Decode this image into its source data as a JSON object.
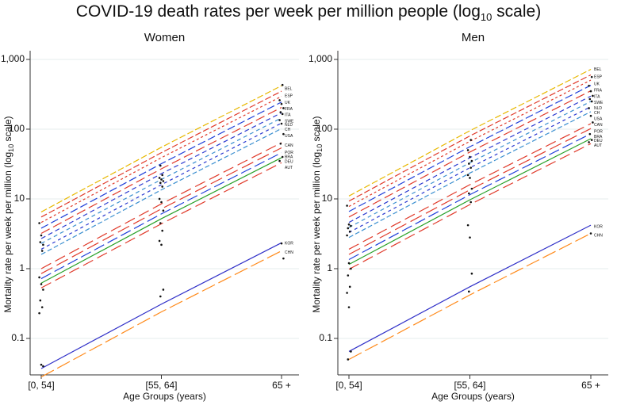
{
  "title": {
    "text": "COVID-19 death rates per week per million people (log",
    "sub": "10",
    "tail": " scale)"
  },
  "chart_data": [
    {
      "type": "line",
      "panel": "Women",
      "title": "Women",
      "xlabel": "Age Groups (years)",
      "ylabel_main": "Mortality rate per week per million (log",
      "ylabel_sub": "10",
      "ylabel_tail": " scale)",
      "yscale": "log",
      "ylim": [
        0.03,
        1200
      ],
      "categories": [
        "[0, 54]",
        "[55, 64]",
        "65 +"
      ],
      "y_ticks": [
        0.1,
        1,
        10,
        100,
        1000
      ],
      "y_tick_labels": [
        "0.1",
        "1",
        "10",
        "100",
        "1,000"
      ],
      "series": [
        {
          "name": "BEL",
          "color": "#e8b800",
          "dash": "8,3",
          "values": [
            6.5,
            55,
            420
          ],
          "label_value": 380
        },
        {
          "name": "ESP",
          "color": "#e03a2a",
          "dash": "8,3",
          "values": [
            5.5,
            46,
            350
          ],
          "label_value": 300
        },
        {
          "name": "UK",
          "color": "#e03a2a",
          "dash": "3,3",
          "values": [
            4.6,
            39,
            295
          ],
          "label_value": 240
        },
        {
          "name": "FRA",
          "color": "#1f3fd9",
          "dash": "10,4",
          "values": [
            3.8,
            32,
            245
          ],
          "label_value": 195
        },
        {
          "name": "ITA",
          "color": "#e03a2a",
          "dash": "12,5",
          "values": [
            3.2,
            27,
            205
          ],
          "label_value": 160
        },
        {
          "name": "SWE",
          "color": "#2a39d0",
          "dash": "6,4",
          "values": [
            2.7,
            23,
            172
          ],
          "label_value": 130
        },
        {
          "name": "NLD",
          "color": "#3b8fd0",
          "dash": "5,4",
          "values": [
            2.3,
            19,
            145
          ],
          "label_value": 115
        },
        {
          "name": "CH",
          "color": "#2a39d0",
          "dash": "4,4",
          "values": [
            1.9,
            16,
            122
          ],
          "label_value": 98
        },
        {
          "name": "USA",
          "color": "#3b8fd0",
          "dash": "6,3",
          "values": [
            1.6,
            13.5,
            102
          ],
          "label_value": 80
        },
        {
          "name": "CAN",
          "color": "#e03a2a",
          "dash": "14,6",
          "values": [
            1.0,
            8.5,
            64
          ],
          "label_value": 58
        },
        {
          "name": "POR",
          "color": "#e03a2a",
          "dash": "16,6",
          "values": [
            0.85,
            7.2,
            54
          ],
          "label_value": 46
        },
        {
          "name": "BRA",
          "color": "#1f3fd9",
          "dash": "14,5",
          "values": [
            0.72,
            6.1,
            46
          ],
          "label_value": 40
        },
        {
          "name": "DEU",
          "color": "#28a028",
          "dash": "",
          "values": [
            0.62,
            5.2,
            39
          ],
          "label_value": 34
        },
        {
          "name": "AUT",
          "color": "#e03a2a",
          "dash": "14,6",
          "values": [
            0.53,
            4.4,
            33
          ],
          "label_value": 28
        },
        {
          "name": "KOR",
          "color": "#3030c8",
          "dash": "",
          "values": [
            0.037,
            0.31,
            2.35
          ],
          "label_value": 2.3
        },
        {
          "name": "CHN",
          "color": "#ff8a1a",
          "dash": "18,5",
          "values": [
            0.028,
            0.24,
            1.8
          ],
          "label_value": 1.7
        }
      ],
      "points": [
        {
          "x": 0,
          "y": 4.5
        },
        {
          "x": 0,
          "y": 3.0
        },
        {
          "x": 0,
          "y": 2.2
        },
        {
          "x": 0,
          "y": 2.4
        },
        {
          "x": 0,
          "y": 1.8
        },
        {
          "x": 0,
          "y": 0.75
        },
        {
          "x": 0,
          "y": 0.6
        },
        {
          "x": 0,
          "y": 0.5
        },
        {
          "x": 0,
          "y": 0.35
        },
        {
          "x": 0,
          "y": 0.28
        },
        {
          "x": 0,
          "y": 0.23
        },
        {
          "x": 0,
          "y": 0.042
        },
        {
          "x": 0,
          "y": 0.04
        },
        {
          "x": 1,
          "y": 30
        },
        {
          "x": 1,
          "y": 22
        },
        {
          "x": 1,
          "y": 20
        },
        {
          "x": 1,
          "y": 19
        },
        {
          "x": 1,
          "y": 18
        },
        {
          "x": 1,
          "y": 17
        },
        {
          "x": 1,
          "y": 15
        },
        {
          "x": 1,
          "y": 10
        },
        {
          "x": 1,
          "y": 9
        },
        {
          "x": 1,
          "y": 6.8
        },
        {
          "x": 1,
          "y": 4.5
        },
        {
          "x": 1,
          "y": 3.5
        },
        {
          "x": 1,
          "y": 2.5
        },
        {
          "x": 1,
          "y": 2.2
        },
        {
          "x": 1,
          "y": 0.5
        },
        {
          "x": 1,
          "y": 0.4
        },
        {
          "x": 2,
          "y": 430
        },
        {
          "x": 2,
          "y": 260
        },
        {
          "x": 2,
          "y": 230
        },
        {
          "x": 2,
          "y": 200
        },
        {
          "x": 2,
          "y": 175
        },
        {
          "x": 2,
          "y": 165
        },
        {
          "x": 2,
          "y": 135
        },
        {
          "x": 2,
          "y": 120
        },
        {
          "x": 2,
          "y": 85
        },
        {
          "x": 2,
          "y": 62
        },
        {
          "x": 2,
          "y": 40
        },
        {
          "x": 2,
          "y": 35
        },
        {
          "x": 2,
          "y": 2.3
        },
        {
          "x": 2,
          "y": 1.4
        }
      ]
    },
    {
      "type": "line",
      "panel": "Men",
      "title": "Men",
      "xlabel": "Age Groups (years)",
      "ylabel_main": "Mortality rate per week per million (log",
      "ylabel_sub": "10",
      "ylabel_tail": " scale)",
      "yscale": "log",
      "ylim": [
        0.03,
        1200
      ],
      "categories": [
        "[0, 54]",
        "[55, 64]",
        "65 +"
      ],
      "y_ticks": [
        0.1,
        1,
        10,
        100,
        1000
      ],
      "y_tick_labels": [
        "0.1",
        "1",
        "10",
        "100",
        "1,000"
      ],
      "series": [
        {
          "name": "BEL",
          "color": "#e8b800",
          "dash": "8,3",
          "values": [
            11,
            95,
            720
          ],
          "label_value": 720
        },
        {
          "name": "ESP",
          "color": "#e03a2a",
          "dash": "8,3",
          "values": [
            9.3,
            80,
            600
          ],
          "label_value": 560
        },
        {
          "name": "UK",
          "color": "#e03a2a",
          "dash": "3,3",
          "values": [
            7.8,
            67,
            505
          ],
          "label_value": 440
        },
        {
          "name": "FRA",
          "color": "#1f3fd9",
          "dash": "10,4",
          "values": [
            6.6,
            56,
            425
          ],
          "label_value": 360
        },
        {
          "name": "ITA",
          "color": "#e03a2a",
          "dash": "12,5",
          "values": [
            5.5,
            47,
            355
          ],
          "label_value": 290
        },
        {
          "name": "SWE",
          "color": "#2a39d0",
          "dash": "6,4",
          "values": [
            4.6,
            39,
            298
          ],
          "label_value": 240
        },
        {
          "name": "NLD",
          "color": "#3b8fd0",
          "dash": "5,4",
          "values": [
            3.9,
            33,
            250
          ],
          "label_value": 200
        },
        {
          "name": "CH",
          "color": "#2a39d0",
          "dash": "4,4",
          "values": [
            3.3,
            28,
            210
          ],
          "label_value": 170
        },
        {
          "name": "USA",
          "color": "#3b8fd0",
          "dash": "6,3",
          "values": [
            2.8,
            23.5,
            178
          ],
          "label_value": 140
        },
        {
          "name": "CAN",
          "color": "#e03a2a",
          "dash": "14,6",
          "values": [
            1.9,
            16,
            120
          ],
          "label_value": 115
        },
        {
          "name": "POR",
          "color": "#e03a2a",
          "dash": "16,6",
          "values": [
            1.6,
            13.5,
            102
          ],
          "label_value": 92
        },
        {
          "name": "BRA",
          "color": "#1f3fd9",
          "dash": "14,5",
          "values": [
            1.35,
            11.5,
            86
          ],
          "label_value": 78
        },
        {
          "name": "DEU",
          "color": "#28a028",
          "dash": "",
          "values": [
            1.15,
            9.7,
            73
          ],
          "label_value": 68
        },
        {
          "name": "AUT",
          "color": "#e03a2a",
          "dash": "14,6",
          "values": [
            0.98,
            8.3,
            62
          ],
          "label_value": 58
        },
        {
          "name": "KOR",
          "color": "#3030c8",
          "dash": "",
          "values": [
            0.065,
            0.55,
            4.2
          ],
          "label_value": 4.0
        },
        {
          "name": "CHN",
          "color": "#ff8a1a",
          "dash": "18,5",
          "values": [
            0.05,
            0.42,
            3.2
          ],
          "label_value": 3.0
        }
      ],
      "points": [
        {
          "x": 0,
          "y": 8
        },
        {
          "x": 0,
          "y": 4.3
        },
        {
          "x": 0,
          "y": 4.1
        },
        {
          "x": 0,
          "y": 3.8
        },
        {
          "x": 0,
          "y": 3.4
        },
        {
          "x": 0,
          "y": 3.0
        },
        {
          "x": 0,
          "y": 1.2
        },
        {
          "x": 0,
          "y": 1.0
        },
        {
          "x": 0,
          "y": 0.8
        },
        {
          "x": 0,
          "y": 0.55
        },
        {
          "x": 0,
          "y": 0.45
        },
        {
          "x": 0,
          "y": 0.28
        },
        {
          "x": 0,
          "y": 0.065
        },
        {
          "x": 0,
          "y": 0.05
        },
        {
          "x": 1,
          "y": 70
        },
        {
          "x": 1,
          "y": 50
        },
        {
          "x": 1,
          "y": 40
        },
        {
          "x": 1,
          "y": 35
        },
        {
          "x": 1,
          "y": 32
        },
        {
          "x": 1,
          "y": 28
        },
        {
          "x": 1,
          "y": 22
        },
        {
          "x": 1,
          "y": 20
        },
        {
          "x": 1,
          "y": 14
        },
        {
          "x": 1,
          "y": 12
        },
        {
          "x": 1,
          "y": 9
        },
        {
          "x": 1,
          "y": 4.2
        },
        {
          "x": 1,
          "y": 2.8
        },
        {
          "x": 1,
          "y": 0.85
        },
        {
          "x": 1,
          "y": 0.47
        },
        {
          "x": 2,
          "y": 560
        },
        {
          "x": 2,
          "y": 420
        },
        {
          "x": 2,
          "y": 350
        },
        {
          "x": 2,
          "y": 300
        },
        {
          "x": 2,
          "y": 270
        },
        {
          "x": 2,
          "y": 250
        },
        {
          "x": 2,
          "y": 200
        },
        {
          "x": 2,
          "y": 155
        },
        {
          "x": 2,
          "y": 125
        },
        {
          "x": 2,
          "y": 85
        },
        {
          "x": 2,
          "y": 70
        },
        {
          "x": 2,
          "y": 65
        },
        {
          "x": 2,
          "y": 3.2
        }
      ]
    }
  ]
}
